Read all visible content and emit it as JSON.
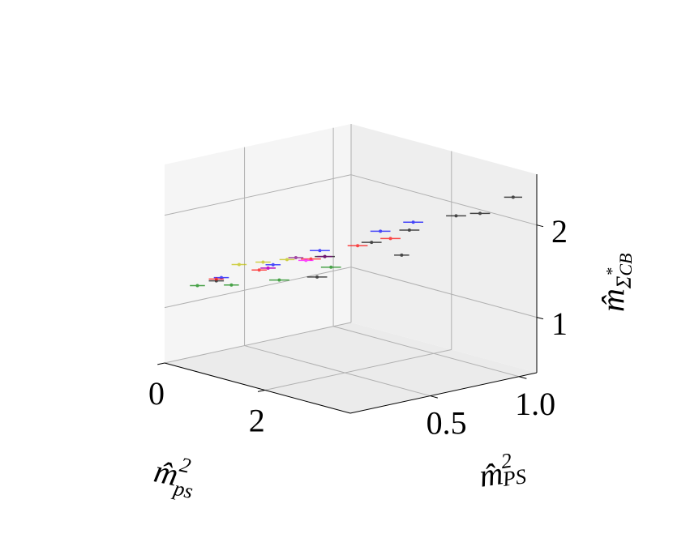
{
  "chart_data": {
    "type": "scatter3d",
    "xlabel": {
      "base": "m̂",
      "sup": "2",
      "sub": "ps"
    },
    "ylabel": {
      "base": "m̂",
      "sup": "2",
      "sub": "PS"
    },
    "zlabel": {
      "base": "m̂",
      "sub": "Σ",
      "subsup": "*",
      "subsub": "CB"
    },
    "xlim": [
      0,
      3.7
    ],
    "ylim": [
      0.05,
      1.1
    ],
    "zlim": [
      0.4,
      2.55
    ],
    "xticks": [
      0,
      2
    ],
    "yticks": [
      0.5,
      {
        "value": 1.0,
        "label": "1.0"
      }
    ],
    "zticks": [
      1,
      2
    ],
    "grid": true,
    "series": [
      {
        "color": "#000000",
        "x": [
          0.5,
          1.0,
          1.6,
          2.0,
          2.4,
          2.8,
          3.1,
          3.3,
          1.8,
          2.6
        ],
        "y": [
          0.2,
          0.35,
          0.5,
          0.65,
          0.75,
          0.9,
          0.95,
          1.08,
          0.4,
          0.65
        ],
        "z": [
          1.3,
          1.45,
          1.6,
          1.75,
          1.9,
          2.05,
          2.1,
          2.25,
          1.45,
          1.7
        ],
        "xerr": [
          0.15,
          0.15,
          0.2,
          0.2,
          0.2,
          0.2,
          0.2,
          0.18,
          0.2,
          0.15
        ]
      },
      {
        "color": "#0000ff",
        "x": [
          0.6,
          1.1,
          1.5,
          2.0,
          2.3
        ],
        "y": [
          0.2,
          0.35,
          0.5,
          0.7,
          0.8
        ],
        "z": [
          1.35,
          1.5,
          1.65,
          1.85,
          1.95
        ],
        "xerr": [
          0.15,
          0.15,
          0.2,
          0.2,
          0.2
        ]
      },
      {
        "color": "#ff0000",
        "x": [
          0.5,
          1.0,
          1.5,
          1.9,
          2.2
        ],
        "y": [
          0.2,
          0.3,
          0.45,
          0.6,
          0.7
        ],
        "z": [
          1.32,
          1.45,
          1.58,
          1.72,
          1.8
        ],
        "xerr": [
          0.15,
          0.15,
          0.2,
          0.2,
          0.2
        ]
      },
      {
        "color": "#008000",
        "x": [
          0.3,
          0.8,
          1.4,
          1.9
        ],
        "y": [
          0.15,
          0.2,
          0.3,
          0.45
        ],
        "z": [
          1.24,
          1.3,
          1.4,
          1.55
        ],
        "xerr": [
          0.15,
          0.15,
          0.2,
          0.2
        ]
      },
      {
        "color": "#bfbf00",
        "x": [
          0.6,
          0.9,
          1.2
        ],
        "y": [
          0.3,
          0.35,
          0.4
        ],
        "z": [
          1.45,
          1.5,
          1.55
        ],
        "xerr": [
          0.15,
          0.15,
          0.15
        ]
      },
      {
        "color": "#800080",
        "x": [
          1.2,
          1.6
        ],
        "y": [
          0.45,
          0.5
        ],
        "z": [
          1.55,
          1.6
        ],
        "xerr": [
          0.15,
          0.15
        ]
      },
      {
        "color": "#ff00ff",
        "x": [
          1.0,
          1.4
        ],
        "y": [
          0.35,
          0.45
        ],
        "z": [
          1.45,
          1.55
        ],
        "xerr": [
          0.15,
          0.15
        ]
      }
    ]
  }
}
